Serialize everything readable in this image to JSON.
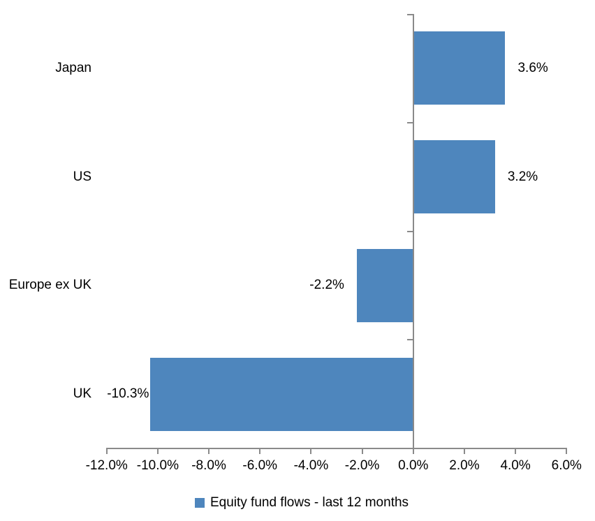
{
  "chart_data": {
    "type": "bar",
    "orientation": "horizontal",
    "categories": [
      "Japan",
      "US",
      "Europe ex UK",
      "UK"
    ],
    "values": [
      3.6,
      3.2,
      -2.2,
      -10.3
    ],
    "data_labels": [
      "3.6%",
      "3.2%",
      "-2.2%",
      "-10.3%"
    ],
    "series": [
      {
        "name": "Equity fund flows - last 12 months",
        "values": [
          3.6,
          3.2,
          -2.2,
          -10.3
        ]
      }
    ],
    "title": "",
    "xlabel": "",
    "ylabel": "",
    "xlim": [
      -12,
      6
    ],
    "x_ticks": [
      "-12.0%",
      "-10.0%",
      "-8.0%",
      "-6.0%",
      "-4.0%",
      "-2.0%",
      "0.0%",
      "2.0%",
      "4.0%",
      "6.0%"
    ],
    "x_tick_values": [
      -12,
      -10,
      -8,
      -6,
      -4,
      -2,
      0,
      2,
      4,
      6
    ],
    "grid": false,
    "legend_position": "bottom",
    "bar_color": "#4E86BD",
    "axis_color": "#8A8A8A",
    "label_color": "#000000"
  },
  "legend": {
    "label": "Equity fund flows - last 12 months",
    "swatch_color": "#4E86BD"
  }
}
